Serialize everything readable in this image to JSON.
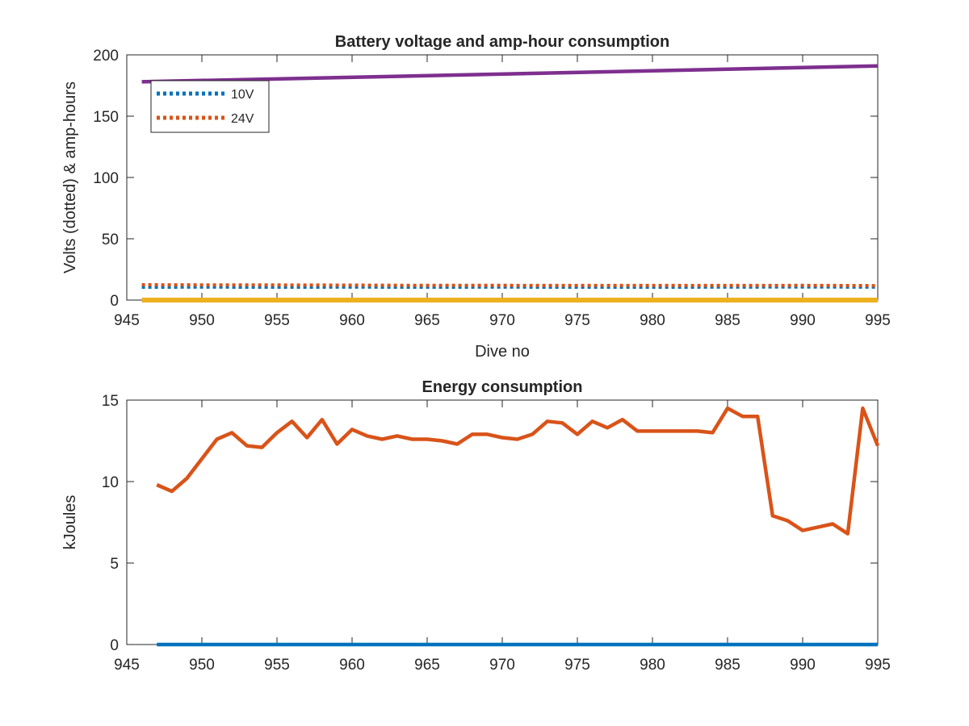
{
  "chart_data": [
    {
      "type": "line",
      "title": "Battery voltage and amp-hour consumption",
      "xlabel": "Dive no",
      "ylabel": "Volts (dotted) & amp-hours",
      "xlim": [
        945,
        995
      ],
      "ylim": [
        0,
        200
      ],
      "xticks": [
        945,
        950,
        955,
        960,
        965,
        970,
        975,
        980,
        985,
        990,
        995
      ],
      "yticks": [
        0,
        50,
        100,
        150,
        200
      ],
      "grid": false,
      "legend_position": "top-left",
      "series": [
        {
          "name": "10V",
          "style": "dotted",
          "color": "#0072BD",
          "in_legend": true,
          "x": [
            946,
            950,
            955,
            960,
            965,
            970,
            975,
            980,
            985,
            990,
            995
          ],
          "y": [
            10.5,
            10.6,
            10.5,
            10.6,
            10.5,
            10.6,
            10.5,
            10.5,
            10.6,
            10.7,
            10.6
          ]
        },
        {
          "name": "24V",
          "style": "dotted",
          "color": "#D95319",
          "in_legend": true,
          "x": [
            946,
            950,
            955,
            960,
            965,
            970,
            975,
            980,
            985,
            990,
            995
          ],
          "y": [
            12.5,
            12.4,
            12.3,
            12.2,
            12.0,
            12.0,
            11.9,
            11.9,
            11.9,
            12.0,
            11.8
          ]
        },
        {
          "style": "solid",
          "color": "#EDB120",
          "in_legend": false,
          "x": [
            946,
            995
          ],
          "y": [
            0,
            0
          ]
        },
        {
          "style": "solid",
          "color": "#7E2F8E",
          "in_legend": false,
          "x": [
            946,
            995
          ],
          "y": [
            178,
            191
          ]
        }
      ]
    },
    {
      "type": "line",
      "title": "Energy consumption",
      "xlabel": "",
      "ylabel": "kJoules",
      "xlim": [
        945,
        995
      ],
      "ylim": [
        0,
        15
      ],
      "xticks": [
        945,
        950,
        955,
        960,
        965,
        970,
        975,
        980,
        985,
        990,
        995
      ],
      "yticks": [
        0,
        5,
        10,
        15
      ],
      "grid": false,
      "series": [
        {
          "style": "solid",
          "color": "#0072BD",
          "x": [
            947,
            995
          ],
          "y": [
            0,
            0
          ]
        },
        {
          "style": "solid",
          "color": "#D95319",
          "x": [
            947,
            948,
            949,
            950,
            951,
            952,
            953,
            954,
            955,
            956,
            957,
            958,
            959,
            960,
            961,
            962,
            963,
            964,
            965,
            966,
            967,
            968,
            969,
            970,
            971,
            972,
            973,
            974,
            975,
            976,
            977,
            978,
            979,
            980,
            981,
            982,
            983,
            984,
            985,
            986,
            987,
            988,
            989,
            990,
            991,
            992,
            993,
            994,
            995
          ],
          "y": [
            9.8,
            9.4,
            10.2,
            11.4,
            12.6,
            13.0,
            12.2,
            12.1,
            13.0,
            13.7,
            12.7,
            13.8,
            12.3,
            13.2,
            12.8,
            12.6,
            12.8,
            12.6,
            12.6,
            12.5,
            12.3,
            12.9,
            12.9,
            12.7,
            12.6,
            12.9,
            13.7,
            13.6,
            12.9,
            13.7,
            13.3,
            13.8,
            13.1,
            13.1,
            13.1,
            13.1,
            13.1,
            13.0,
            14.5,
            14.0,
            14.0,
            7.9,
            7.6,
            7.0,
            7.2,
            7.4,
            6.8,
            14.5,
            12.2
          ]
        }
      ]
    }
  ]
}
